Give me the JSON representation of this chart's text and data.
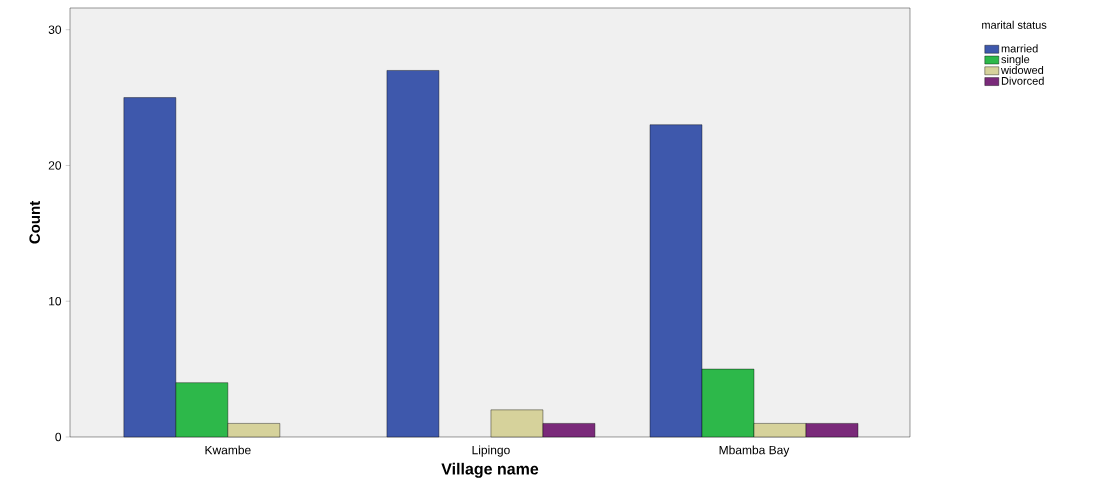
{
  "chart_data": {
    "type": "bar",
    "xlabel": "Village name",
    "ylabel": "Count",
    "legend_title": "marital status",
    "categories": [
      "Kwambe",
      "Lipingo",
      "Mbamba Bay"
    ],
    "series": [
      {
        "name": "married",
        "color": "#3e58ac",
        "values": [
          25,
          27,
          23
        ]
      },
      {
        "name": "single",
        "color": "#2db84a",
        "values": [
          4,
          null,
          5
        ]
      },
      {
        "name": "widowed",
        "color": "#d6d29b",
        "values": [
          1,
          2,
          1
        ]
      },
      {
        "name": "Divorced",
        "color": "#7a2a7a",
        "values": [
          null,
          1,
          1
        ]
      }
    ],
    "ylim": [
      0,
      31.6
    ],
    "yticks": [
      0,
      10,
      20,
      30
    ],
    "grid": false,
    "legend": "top right"
  }
}
